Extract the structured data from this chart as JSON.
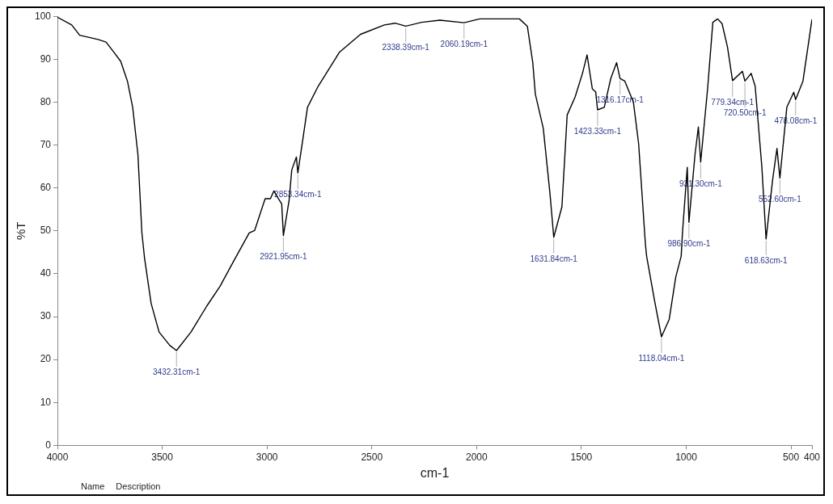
{
  "chart_data": {
    "type": "line",
    "xlabel": "cm-1",
    "ylabel": "%T",
    "x": [
      4000,
      3932,
      3894,
      3806,
      3768,
      3730,
      3698,
      3666,
      3641,
      3616,
      3597,
      3584,
      3553,
      3515,
      3464,
      3432,
      3363,
      3287,
      3224,
      3161,
      3085,
      3059,
      3009,
      2984,
      2967,
      2946,
      2930,
      2922,
      2895,
      2882,
      2860,
      2853,
      2825,
      2807,
      2756,
      2655,
      2554,
      2440,
      2389,
      2338,
      2263,
      2175,
      2060,
      1985,
      1796,
      1758,
      1732,
      1720,
      1682,
      1650,
      1632,
      1593,
      1568,
      1530,
      1495,
      1473,
      1448,
      1432,
      1423,
      1391,
      1360,
      1332,
      1316,
      1293,
      1252,
      1227,
      1195,
      1189,
      1151,
      1118,
      1081,
      1050,
      1024,
      1018,
      995,
      987,
      958,
      942,
      931,
      898,
      873,
      850,
      829,
      803,
      779,
      732,
      720,
      690,
      671,
      639,
      619,
      588,
      567,
      553,
      520,
      487,
      478,
      443,
      400
    ],
    "series": [
      {
        "color": "#000000",
        "values": [
          99.8,
          98.0,
          95.6,
          94.6,
          94.0,
          91.6,
          89.5,
          84.9,
          78.8,
          67.8,
          49.5,
          43.5,
          33.1,
          26.4,
          23.3,
          22.1,
          26.4,
          32.5,
          37.1,
          42.8,
          49.5,
          50.1,
          57.5,
          57.5,
          59.3,
          57.5,
          56.3,
          48.9,
          57.0,
          64.2,
          67.2,
          63.5,
          72.7,
          78.8,
          83.7,
          91.6,
          95.8,
          98.0,
          98.4,
          97.7,
          98.6,
          99.1,
          98.5,
          99.4,
          99.4,
          97.7,
          89.2,
          81.9,
          73.9,
          58.7,
          48.5,
          55.6,
          77.0,
          81.2,
          86.7,
          91.0,
          83.1,
          82.4,
          78.2,
          78.8,
          85.5,
          89.2,
          85.5,
          84.9,
          80.0,
          70.3,
          47.1,
          44.1,
          33.7,
          25.3,
          29.4,
          39.2,
          44.1,
          49.5,
          64.8,
          52.0,
          67.8,
          74.2,
          66.0,
          83.1,
          98.6,
          99.4,
          98.3,
          92.8,
          85.0,
          87.2,
          84.9,
          86.7,
          83.7,
          64.8,
          48.1,
          61.8,
          69.2,
          62.3,
          78.8,
          82.3,
          80.6,
          84.9,
          99.3
        ]
      }
    ],
    "xlim": [
      4000,
      400
    ],
    "xticks": [
      4000,
      3500,
      3000,
      2500,
      2000,
      1500,
      1000,
      500,
      400
    ],
    "ylim": [
      0,
      100
    ],
    "yticks": [
      0,
      10,
      20,
      30,
      40,
      50,
      60,
      70,
      80,
      90,
      100
    ],
    "grid": false,
    "legend": false,
    "marker": "none",
    "line_style": "solid",
    "annotations": [
      {
        "text": "3432.31cm-1",
        "x": 3432,
        "y": 22.1
      },
      {
        "text": "2921.95cm-1",
        "x": 2922,
        "y": 48.9
      },
      {
        "text": "2853.34cm-1",
        "x": 2853,
        "y": 63.5
      },
      {
        "text": "2338.39cm-1",
        "x": 2338,
        "y": 97.7
      },
      {
        "text": "2060.19cm-1",
        "x": 2060,
        "y": 98.5
      },
      {
        "text": "1631.84cm-1",
        "x": 1632,
        "y": 48.5
      },
      {
        "text": "1423.33cm-1",
        "x": 1423,
        "y": 78.2
      },
      {
        "text": "1316.17cm-1",
        "x": 1316,
        "y": 85.5
      },
      {
        "text": "1118.04cm-1",
        "x": 1118,
        "y": 25.3
      },
      {
        "text": "986.90cm-1",
        "x": 987,
        "y": 52.0
      },
      {
        "text": "931.30cm-1",
        "x": 931,
        "y": 66.0
      },
      {
        "text": "779.34cm-1",
        "x": 779,
        "y": 85.0
      },
      {
        "text": "720.50cm-1",
        "x": 720,
        "y": 84.9
      },
      {
        "text": "618.63cm-1",
        "x": 619,
        "y": 48.1
      },
      {
        "text": "552.60cm-1",
        "x": 553,
        "y": 62.3
      },
      {
        "text": "478.08cm-1",
        "x": 478,
        "y": 80.6
      },
      "Name",
      "Description"
    ]
  }
}
